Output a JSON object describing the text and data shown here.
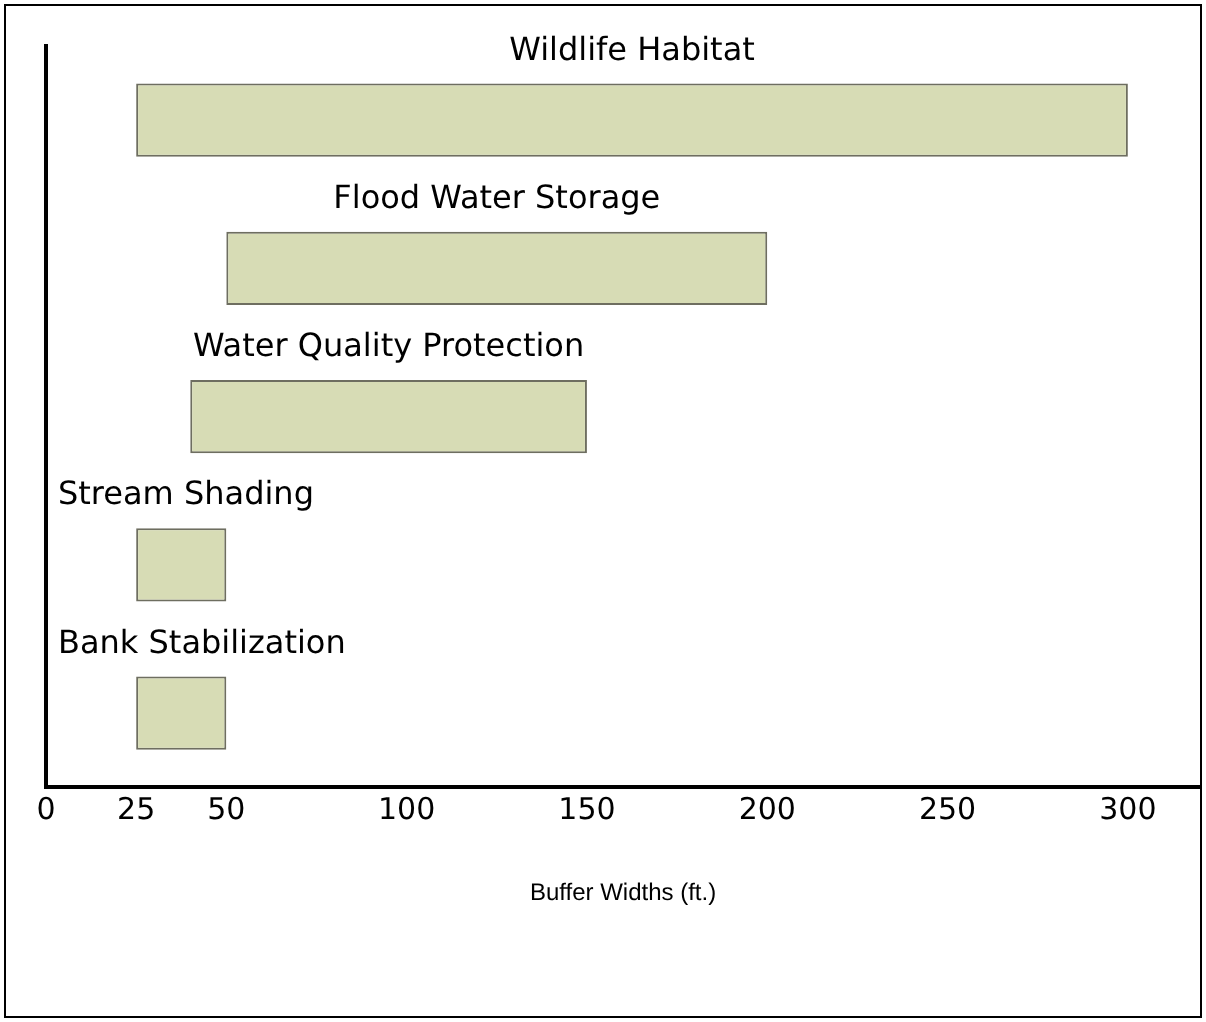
{
  "chart_data": {
    "type": "bar",
    "orientation": "horizontal",
    "xlabel": "Buffer Widths (ft.)",
    "categories": [
      "Wildlife Habitat",
      "Flood Water Storage",
      "Water Quality Protection",
      "Stream Shading",
      "Bank Stabilization"
    ],
    "base": [
      25,
      50,
      40,
      25,
      25
    ],
    "values": [
      275,
      150,
      110,
      25,
      25
    ],
    "color": "#d7dcb5",
    "xlim": [
      0,
      320
    ],
    "xticks": [
      0,
      25,
      50,
      100,
      150,
      200,
      250,
      300
    ],
    "grid": false,
    "legend": false,
    "tick_labels": "x"
  }
}
